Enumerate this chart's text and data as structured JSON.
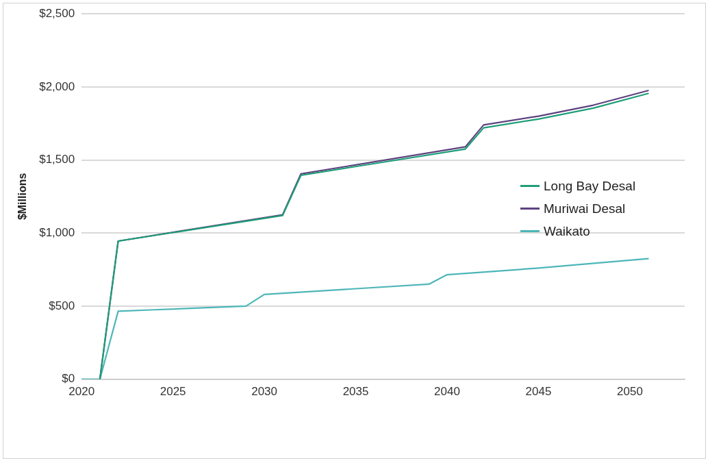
{
  "chart_data": {
    "type": "line",
    "ylabel": "$Millions",
    "series": [
      {
        "name": "Long Bay Desal",
        "color": "#1e9e78",
        "x": [
          2021,
          2022,
          2031,
          2032,
          2041,
          2042,
          2045,
          2048,
          2051
        ],
        "values": [
          0,
          945,
          1120,
          1395,
          1575,
          1720,
          1780,
          1855,
          1955
        ]
      },
      {
        "name": "Muriwai Desal",
        "color": "#5e4180",
        "x": [
          2021,
          2022,
          2031,
          2032,
          2041,
          2042,
          2045,
          2048,
          2051
        ],
        "values": [
          0,
          945,
          1125,
          1405,
          1590,
          1740,
          1800,
          1875,
          1975
        ]
      },
      {
        "name": "Waikato",
        "color": "#4db6b8",
        "x": [
          2020,
          2021,
          2022,
          2024,
          2029,
          2030,
          2039,
          2040,
          2045,
          2051
        ],
        "values": [
          0,
          0,
          465,
          475,
          500,
          580,
          650,
          715,
          760,
          825
        ]
      }
    ],
    "xlim": [
      2020,
      2053
    ],
    "xticks": [
      2020,
      2025,
      2030,
      2035,
      2040,
      2045,
      2050
    ],
    "ylim": [
      0,
      2500
    ],
    "yticks": [
      {
        "value": 0,
        "label": "$0"
      },
      {
        "value": 500,
        "label": "$500"
      },
      {
        "value": 1000,
        "label": "$1,000"
      },
      {
        "value": 1500,
        "label": "$1,500"
      },
      {
        "value": 2000,
        "label": "$2,000"
      },
      {
        "value": 2500,
        "label": "$2,500"
      }
    ],
    "grid": "y",
    "legend": "right",
    "marker": "none",
    "line_style": "solid"
  }
}
